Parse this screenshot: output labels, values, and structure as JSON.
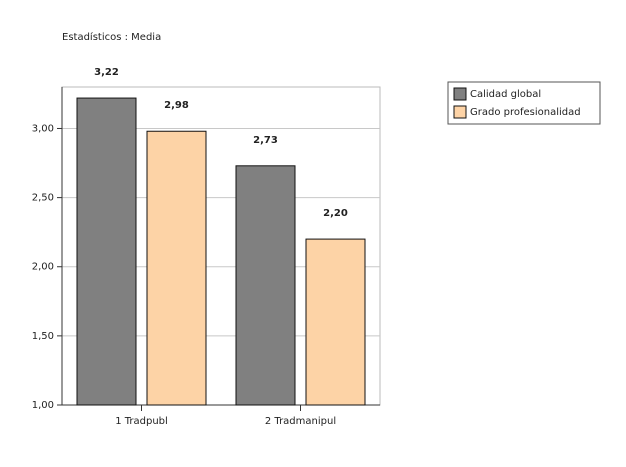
{
  "chart_data": {
    "type": "bar",
    "title": "Estadísticos : Media",
    "categories": [
      "1 Tradpubl",
      "2 Tradmanipul"
    ],
    "series": [
      {
        "name": "Calidad global",
        "color": "#808080",
        "values": [
          3.22,
          2.73
        ],
        "value_labels": [
          "3,22",
          "2,73"
        ]
      },
      {
        "name": "Grado profesionalidad",
        "color": "#fdd3a6",
        "values": [
          2.98,
          2.2
        ],
        "value_labels": [
          "2,98",
          "2,20"
        ]
      }
    ],
    "ylim": [
      1,
      3.3
    ],
    "yticks": [
      {
        "value": 1,
        "label": "1,00"
      },
      {
        "value": 1.5,
        "label": "1,50"
      },
      {
        "value": 2,
        "label": "2,00"
      },
      {
        "value": 2.5,
        "label": "2,50"
      },
      {
        "value": 3,
        "label": "3,00"
      }
    ],
    "grid": true,
    "legend": "top-right"
  }
}
